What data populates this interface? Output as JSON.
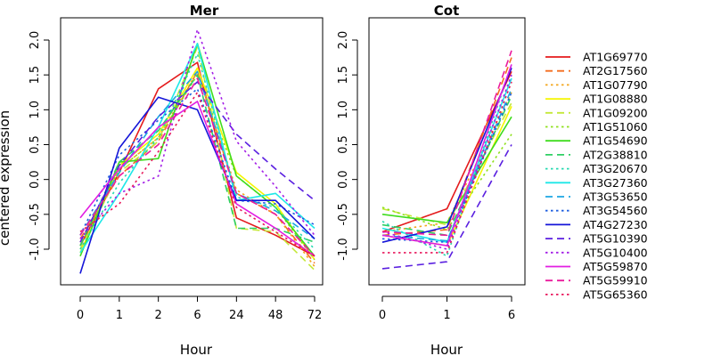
{
  "chart_data": [
    {
      "type": "line",
      "title": "Mer",
      "xlabel": "Hour",
      "ylabel": "centered expression",
      "categories": [
        "0",
        "1",
        "2",
        "6",
        "24",
        "48",
        "72"
      ],
      "y_ticks": [
        "-1.0",
        "-0.5",
        "0.0",
        "0.5",
        "1.0",
        "1.5",
        "2.0"
      ],
      "ylim": [
        -1.5,
        2.2
      ],
      "series": [
        {
          "name": "AT1G69770",
          "values": [
            -0.95,
            0.1,
            1.3,
            1.68,
            -0.55,
            -0.8,
            -1.1
          ]
        },
        {
          "name": "AT2G17560",
          "values": [
            -0.85,
            0.05,
            0.55,
            1.55,
            -0.2,
            -0.5,
            -1.2
          ]
        },
        {
          "name": "AT1G07790",
          "values": [
            -0.9,
            0.15,
            0.6,
            1.55,
            -0.15,
            -0.5,
            -1.25
          ]
        },
        {
          "name": "AT1G08880",
          "values": [
            -1.05,
            0.2,
            0.65,
            1.6,
            0.1,
            -0.35,
            -1.15
          ]
        },
        {
          "name": "AT1G09200",
          "values": [
            -1.0,
            0.1,
            0.55,
            1.9,
            -0.7,
            -0.75,
            -1.3
          ]
        },
        {
          "name": "AT1G51060",
          "values": [
            -0.95,
            0.15,
            0.6,
            1.5,
            0.05,
            -0.4,
            -1.15
          ]
        },
        {
          "name": "AT1G54690",
          "values": [
            -1.1,
            0.25,
            0.3,
            1.95,
            0.05,
            -0.4,
            -1.1
          ]
        },
        {
          "name": "AT2G38810",
          "values": [
            -0.95,
            0.25,
            0.7,
            1.5,
            -0.7,
            -0.7,
            -0.9
          ]
        },
        {
          "name": "AT3G20670",
          "values": [
            -1.0,
            -0.05,
            0.6,
            1.8,
            -0.25,
            -0.4,
            -1.0
          ]
        },
        {
          "name": "AT3G27360",
          "values": [
            -1.05,
            -0.2,
            0.75,
            1.95,
            -0.3,
            -0.2,
            -0.7
          ]
        },
        {
          "name": "AT3G53650",
          "values": [
            -0.8,
            0.1,
            0.9,
            1.55,
            -0.2,
            -0.45,
            -0.85
          ]
        },
        {
          "name": "AT3G54560",
          "values": [
            -0.8,
            0.35,
            0.85,
            1.3,
            -0.3,
            -0.35,
            -0.65
          ]
        },
        {
          "name": "AT4G27230",
          "values": [
            -1.35,
            0.45,
            1.18,
            1.0,
            -0.3,
            -0.3,
            -0.85
          ]
        },
        {
          "name": "AT5G10390",
          "values": [
            -0.9,
            0.2,
            0.9,
            1.4,
            0.65,
            0.15,
            -0.3
          ]
        },
        {
          "name": "AT5G10400",
          "values": [
            -0.85,
            -0.2,
            0.05,
            2.15,
            0.55,
            -0.1,
            -0.8
          ]
        },
        {
          "name": "AT5G59870",
          "values": [
            -0.55,
            0.15,
            0.75,
            1.12,
            -0.35,
            -0.7,
            -1.1
          ]
        },
        {
          "name": "AT5G59910",
          "values": [
            -0.8,
            0.05,
            0.5,
            1.45,
            -0.2,
            -0.5,
            -1.1
          ]
        },
        {
          "name": "AT5G65360",
          "values": [
            -0.75,
            -0.35,
            0.4,
            1.25,
            -0.4,
            -0.75,
            -1.1
          ]
        }
      ]
    },
    {
      "type": "line",
      "title": "Cot",
      "xlabel": "Hour",
      "ylabel": "",
      "categories": [
        "0",
        "1",
        "6"
      ],
      "y_ticks": [
        "-1.0",
        "-0.5",
        "0.0",
        "0.5",
        "1.0",
        "1.5",
        "2.0"
      ],
      "ylim": [
        -1.5,
        2.2
      ],
      "series": [
        {
          "name": "AT1G69770",
          "values": [
            -0.75,
            -0.42,
            1.55
          ]
        },
        {
          "name": "AT2G17560",
          "values": [
            -0.8,
            -0.72,
            1.75
          ]
        },
        {
          "name": "AT1G07790",
          "values": [
            -0.75,
            -0.62,
            1.25
          ]
        },
        {
          "name": "AT1G08880",
          "values": [
            -0.8,
            -0.95,
            1.05
          ]
        },
        {
          "name": "AT1G09200",
          "values": [
            -0.42,
            -0.65,
            1.1
          ]
        },
        {
          "name": "AT1G51060",
          "values": [
            -0.4,
            -0.72,
            0.65
          ]
        },
        {
          "name": "AT1G54690",
          "values": [
            -0.5,
            -0.62,
            0.9
          ]
        },
        {
          "name": "AT2G38810",
          "values": [
            -0.65,
            -0.8,
            1.2
          ]
        },
        {
          "name": "AT3G20670",
          "values": [
            -0.6,
            -1.1,
            1.65
          ]
        },
        {
          "name": "AT3G27360",
          "values": [
            -0.7,
            -0.9,
            1.45
          ]
        },
        {
          "name": "AT3G53650",
          "values": [
            -0.8,
            -0.88,
            1.3
          ]
        },
        {
          "name": "AT3G54560",
          "values": [
            -0.85,
            -0.9,
            1.25
          ]
        },
        {
          "name": "AT4G27230",
          "values": [
            -0.9,
            -0.68,
            1.6
          ]
        },
        {
          "name": "AT5G10390",
          "values": [
            -1.28,
            -1.18,
            0.5
          ]
        },
        {
          "name": "AT5G10400",
          "values": [
            -0.75,
            -1.0,
            1.5
          ]
        },
        {
          "name": "AT5G59870",
          "values": [
            -0.8,
            -0.95,
            1.65
          ]
        },
        {
          "name": "AT5G59910",
          "values": [
            -0.75,
            -0.8,
            1.85
          ]
        },
        {
          "name": "AT5G65360",
          "values": [
            -1.05,
            -1.05,
            1.4
          ]
        }
      ]
    }
  ],
  "legend": {
    "placement": "right",
    "items": [
      {
        "name": "AT1G69770",
        "color": "#e41a1c",
        "dash": "solid"
      },
      {
        "name": "AT2G17560",
        "color": "#f46d1f",
        "dash": "dashed"
      },
      {
        "name": "AT1G07790",
        "color": "#f3a51a",
        "dash": "dotted"
      },
      {
        "name": "AT1G08880",
        "color": "#f5f500",
        "dash": "solid"
      },
      {
        "name": "AT1G09200",
        "color": "#c4e83a",
        "dash": "dashed"
      },
      {
        "name": "AT1G51060",
        "color": "#8fe01b",
        "dash": "dotted"
      },
      {
        "name": "AT1G54690",
        "color": "#3fdc1e",
        "dash": "solid"
      },
      {
        "name": "AT2G38810",
        "color": "#2ecf63",
        "dash": "dashed"
      },
      {
        "name": "AT3G20670",
        "color": "#26d9b0",
        "dash": "dotted"
      },
      {
        "name": "AT3G27360",
        "color": "#1ee8e8",
        "dash": "solid"
      },
      {
        "name": "AT3G53650",
        "color": "#1da6e2",
        "dash": "dashed"
      },
      {
        "name": "AT3G54560",
        "color": "#1f5fe0",
        "dash": "dotted"
      },
      {
        "name": "AT4G27230",
        "color": "#1515d8",
        "dash": "solid"
      },
      {
        "name": "AT5G10390",
        "color": "#5a1fe0",
        "dash": "dashed"
      },
      {
        "name": "AT5G10400",
        "color": "#a31ee6",
        "dash": "dotted"
      },
      {
        "name": "AT5G59870",
        "color": "#e21ee2",
        "dash": "solid"
      },
      {
        "name": "AT5G59910",
        "color": "#ea1b9d",
        "dash": "dashed"
      },
      {
        "name": "AT5G65360",
        "color": "#e8175b",
        "dash": "dotted"
      }
    ]
  }
}
